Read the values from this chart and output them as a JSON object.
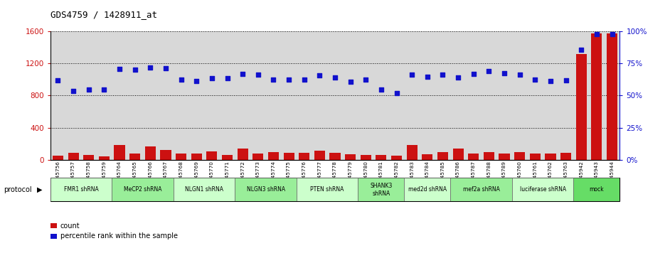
{
  "title": "GDS4759 / 1428911_at",
  "sample_ids": [
    "GSM1145756",
    "GSM1145757",
    "GSM1145758",
    "GSM1145759",
    "GSM1145764",
    "GSM1145765",
    "GSM1145766",
    "GSM1145767",
    "GSM1145768",
    "GSM1145769",
    "GSM1145770",
    "GSM1145771",
    "GSM1145772",
    "GSM1145773",
    "GSM1145774",
    "GSM1145775",
    "GSM1145776",
    "GSM1145777",
    "GSM1145778",
    "GSM1145779",
    "GSM1145780",
    "GSM1145781",
    "GSM1145782",
    "GSM1145783",
    "GSM1145784",
    "GSM1145785",
    "GSM1145786",
    "GSM1145787",
    "GSM1145788",
    "GSM1145789",
    "GSM1145760",
    "GSM1145761",
    "GSM1145762",
    "GSM1145763",
    "GSM1145942",
    "GSM1145943",
    "GSM1145944"
  ],
  "bar_values": [
    55,
    90,
    65,
    45,
    185,
    80,
    165,
    120,
    80,
    80,
    105,
    65,
    140,
    80,
    100,
    90,
    85,
    115,
    90,
    70,
    65,
    65,
    55,
    190,
    75,
    100,
    140,
    80,
    95,
    80,
    100,
    80,
    80,
    90,
    1310,
    1570,
    1570
  ],
  "dot_values": [
    990,
    860,
    870,
    875,
    1130,
    1120,
    1150,
    1140,
    1000,
    980,
    1010,
    1010,
    1070,
    1060,
    1000,
    1000,
    1000,
    1050,
    1020,
    970,
    1000,
    870,
    830,
    1060,
    1030,
    1060,
    1020,
    1070,
    1100,
    1080,
    1060,
    1000,
    980,
    990,
    1370,
    1560,
    1560
  ],
  "protocols": [
    {
      "label": "FMR1 shRNA",
      "start": 0,
      "end": 4,
      "color": "#ccffcc"
    },
    {
      "label": "MeCP2 shRNA",
      "start": 4,
      "end": 8,
      "color": "#99ee99"
    },
    {
      "label": "NLGN1 shRNA",
      "start": 8,
      "end": 12,
      "color": "#ccffcc"
    },
    {
      "label": "NLGN3 shRNA",
      "start": 12,
      "end": 16,
      "color": "#99ee99"
    },
    {
      "label": "PTEN shRNA",
      "start": 16,
      "end": 20,
      "color": "#ccffcc"
    },
    {
      "label": "SHANK3\nshRNA",
      "start": 20,
      "end": 23,
      "color": "#99ee99"
    },
    {
      "label": "med2d shRNA",
      "start": 23,
      "end": 26,
      "color": "#ccffcc"
    },
    {
      "label": "mef2a shRNA",
      "start": 26,
      "end": 30,
      "color": "#99ee99"
    },
    {
      "label": "luciferase shRNA",
      "start": 30,
      "end": 34,
      "color": "#ccffcc"
    },
    {
      "label": "mock",
      "start": 34,
      "end": 37,
      "color": "#66dd66"
    }
  ],
  "ylim_left": [
    0,
    1600
  ],
  "ylim_right": [
    0,
    100
  ],
  "yticks_left": [
    0,
    400,
    800,
    1200,
    1600
  ],
  "yticks_right": [
    0,
    25,
    50,
    75,
    100
  ],
  "bar_color": "#cc1111",
  "dot_color": "#1111cc",
  "col_bg": "#d8d8d8"
}
